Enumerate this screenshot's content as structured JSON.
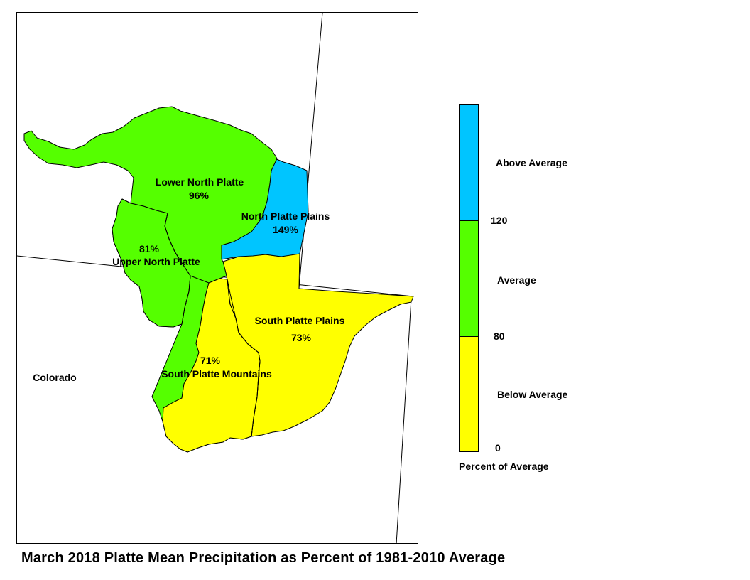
{
  "title": "March 2018 Platte Mean Precipitation as Percent of 1981-2010 Average",
  "state_label": "Colorado",
  "colors": {
    "above": "#00c5ff",
    "average": "#55ff00",
    "below": "#ffff00"
  },
  "regions": [
    {
      "name": "Lower North Platte",
      "value": "96%",
      "category": "average"
    },
    {
      "name": "North Platte Plains",
      "value": "149%",
      "category": "above"
    },
    {
      "name": "Upper North Platte",
      "value": "81%",
      "category": "average"
    },
    {
      "name": "South Platte Plains",
      "value": "73%",
      "category": "below"
    },
    {
      "name": "South Platte Mountains",
      "value": "71%",
      "category": "below"
    }
  ],
  "legend": {
    "title": "Percent of Average",
    "categories": [
      {
        "label": "Above Average",
        "color": "#00c5ff"
      },
      {
        "label": "Average",
        "color": "#55ff00"
      },
      {
        "label": "Below Average",
        "color": "#ffff00"
      }
    ],
    "breaks": [
      "120",
      "80",
      "0"
    ]
  }
}
